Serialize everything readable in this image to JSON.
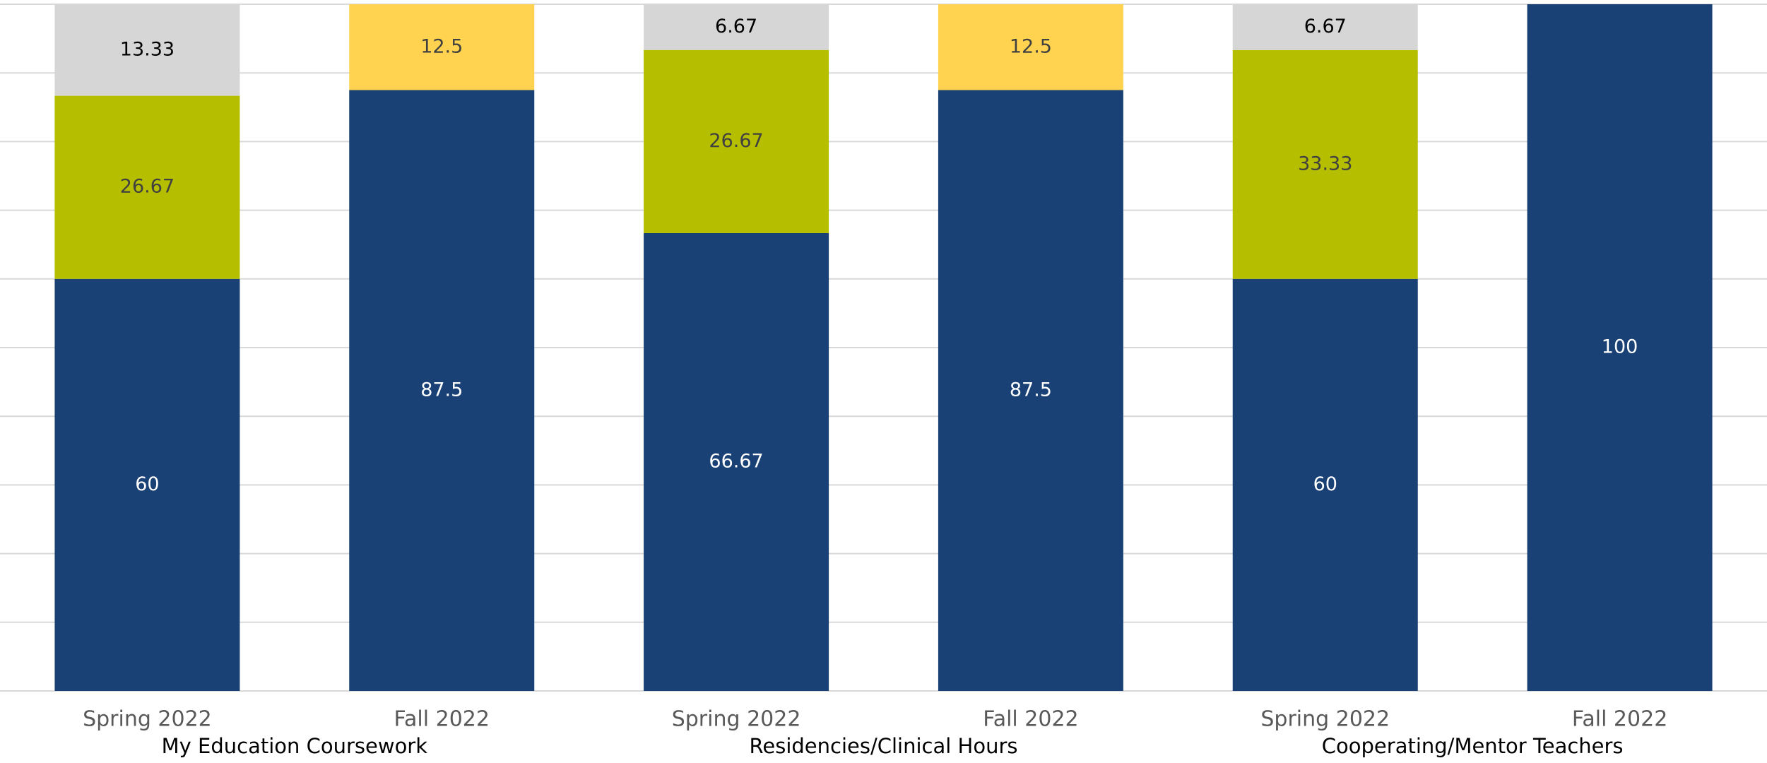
{
  "chart_data": {
    "type": "stacked_bar",
    "categories": [
      "Spring 2022",
      "Fall 2022",
      "Spring 2022",
      "Fall 2022",
      "Spring 2022",
      "Fall 2022"
    ],
    "groups": [
      "My Education Coursework",
      "Residencies/Clinical Hours",
      "Cooperating/Mentor Teachers"
    ],
    "series": [
      {
        "color": "#1a4175",
        "label_color": "#ffffff",
        "values": [
          60,
          87.5,
          66.67,
          87.5,
          60,
          100
        ]
      },
      {
        "color": "#b5bf00",
        "label_color": "#404040",
        "values": [
          26.67,
          null,
          26.67,
          null,
          33.33,
          null
        ]
      },
      {
        "color": "#ffd34f",
        "label_color": "#404040",
        "values": [
          null,
          12.5,
          null,
          12.5,
          null,
          null
        ]
      },
      {
        "color": "#d6d6d6",
        "label_color": "#000000",
        "values": [
          13.33,
          null,
          6.67,
          null,
          6.67,
          null
        ]
      }
    ],
    "ylim": [
      0,
      100
    ],
    "yticks": [
      0,
      10,
      20,
      30,
      40,
      50,
      60,
      70,
      80,
      90,
      100
    ],
    "grid": true
  }
}
